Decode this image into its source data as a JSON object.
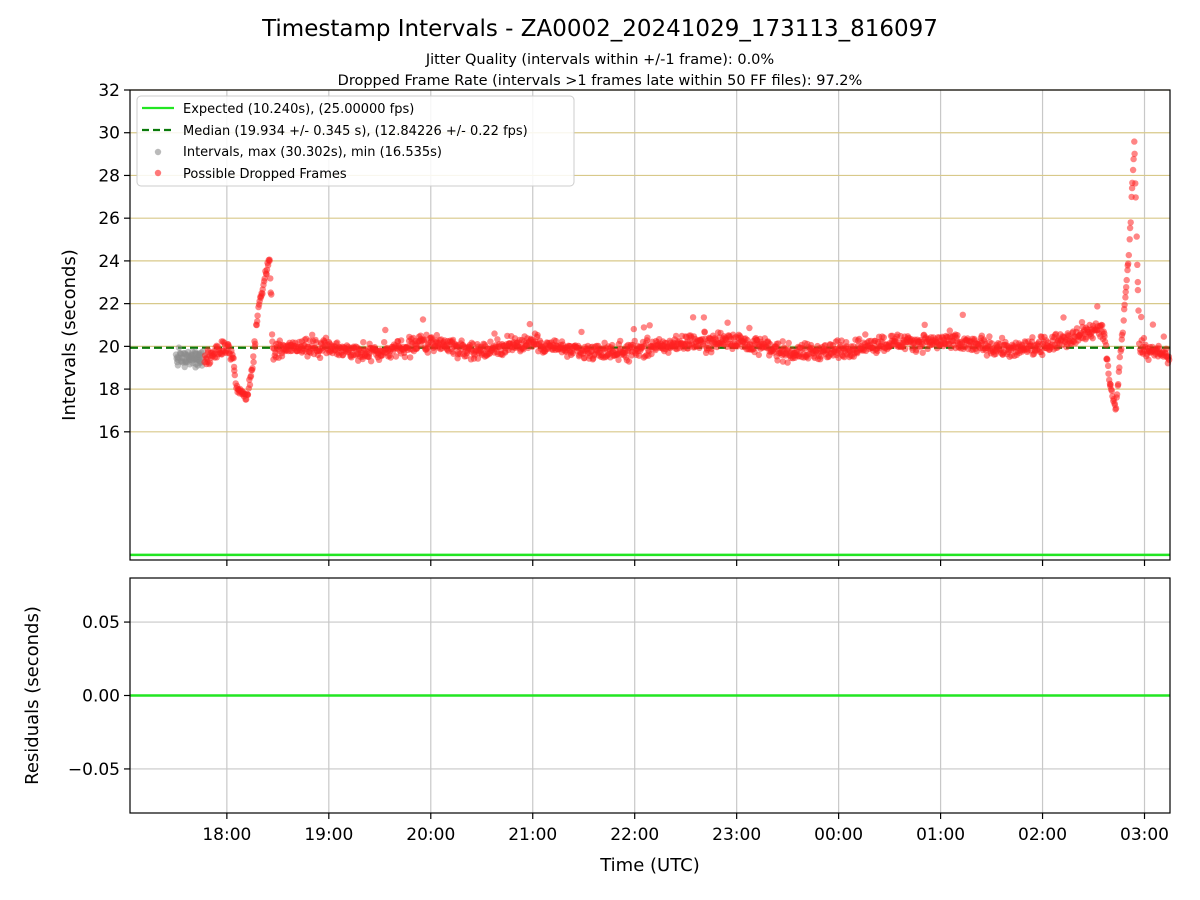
{
  "chart_data": [
    {
      "type": "scatter",
      "title": "Timestamp Intervals - ZA0002_20241029_173113_816097",
      "subtitle_lines": [
        "Jitter Quality (intervals within +/-1 frame): 0.0%",
        "Dropped Frame Rate (intervals >1 frames late within 50 FF files): 97.2%"
      ],
      "xlabel": "",
      "ylabel": "Intervals (seconds)",
      "x_axis_unit": "hours after 17:00 UTC on 2024-10-29",
      "xlim": [
        0.05,
        10.25
      ],
      "ylim": [
        10,
        32
      ],
      "yticks": [
        16,
        18,
        20,
        22,
        24,
        26,
        28,
        30,
        32
      ],
      "xticks": [
        1,
        2,
        3,
        4,
        5,
        6,
        7,
        8,
        9,
        10
      ],
      "xtick_labels": [],
      "horizontal_gridlines": [
        16,
        18,
        20,
        22,
        24,
        26,
        28,
        30,
        32
      ],
      "horizontal_grid_color": "#d8c98a",
      "vertical_grid": true,
      "legend_position": "upper-left",
      "legend": [
        {
          "label": "Expected (10.240s), (25.00000 fps)",
          "marker": "solid-line",
          "color": "#22e622"
        },
        {
          "label": "Median (19.934 +/- 0.345 s), (12.84226 +/- 0.22 fps)",
          "marker": "dashed-line",
          "color": "#0a7a0a"
        },
        {
          "label": "Intervals, max (30.302s), min (16.535s)",
          "marker": "dot",
          "color": "#8c8c8c"
        },
        {
          "label": "Possible Dropped Frames",
          "marker": "dot",
          "color": "#ff2020"
        }
      ],
      "reference_lines": {
        "expected": {
          "y": 10.24,
          "color": "#22e622"
        },
        "median": {
          "y": 19.934,
          "color": "#0a7a0a"
        }
      },
      "series": [
        {
          "name": "Intervals, max (30.302s), min (16.535s)",
          "color": "#8c8c8c",
          "x_range": [
            0.5,
            0.78
          ],
          "y_center": 19.5,
          "y_spread": 0.35
        },
        {
          "name": "Possible Dropped Frames",
          "color": "#ff2020",
          "profile": [
            [
              0.78,
              19.4
            ],
            [
              0.95,
              19.8
            ],
            [
              1.0,
              20.0
            ],
            [
              1.05,
              19.5
            ],
            [
              1.1,
              18.0
            ],
            [
              1.2,
              17.6
            ],
            [
              1.25,
              19.0
            ],
            [
              1.3,
              21.5
            ],
            [
              1.38,
              23.4
            ],
            [
              1.42,
              24.0
            ],
            [
              1.45,
              19.8
            ],
            [
              1.6,
              20.0
            ],
            [
              2.0,
              19.9
            ],
            [
              2.5,
              19.7
            ],
            [
              3.0,
              20.2
            ],
            [
              3.5,
              19.8
            ],
            [
              4.0,
              20.2
            ],
            [
              4.5,
              19.7
            ],
            [
              5.0,
              19.8
            ],
            [
              5.5,
              20.2
            ],
            [
              6.0,
              20.3
            ],
            [
              6.5,
              19.7
            ],
            [
              7.0,
              19.8
            ],
            [
              7.5,
              20.2
            ],
            [
              8.0,
              20.2
            ],
            [
              8.5,
              20.0
            ],
            [
              8.7,
              19.8
            ],
            [
              9.0,
              20.0
            ],
            [
              9.3,
              20.5
            ],
            [
              9.5,
              20.8
            ],
            [
              9.6,
              20.8
            ],
            [
              9.65,
              18.5
            ],
            [
              9.72,
              17.0
            ],
            [
              9.78,
              20.5
            ],
            [
              9.85,
              24.5
            ],
            [
              9.9,
              29.5
            ],
            [
              9.95,
              20.0
            ],
            [
              10.25,
              19.5
            ]
          ],
          "y_spread": 0.35
        }
      ]
    },
    {
      "type": "line",
      "xlabel": "Time (UTC)",
      "ylabel": "Residuals (seconds)",
      "xlim": [
        0.05,
        10.25
      ],
      "ylim": [
        -0.08,
        0.08
      ],
      "yticks": [
        -0.05,
        0.0,
        0.05
      ],
      "ytick_labels": [
        "−0.05",
        "0.00",
        "0.05"
      ],
      "xticks": [
        1,
        2,
        3,
        4,
        5,
        6,
        7,
        8,
        9,
        10
      ],
      "xtick_labels": [
        "18:00",
        "19:00",
        "20:00",
        "21:00",
        "22:00",
        "23:00",
        "00:00",
        "01:00",
        "02:00",
        "03:00"
      ],
      "grid": true,
      "series": [
        {
          "color": "#22e622",
          "x": [
            0.05,
            10.25
          ],
          "y": [
            0.0,
            0.0
          ]
        }
      ]
    }
  ]
}
